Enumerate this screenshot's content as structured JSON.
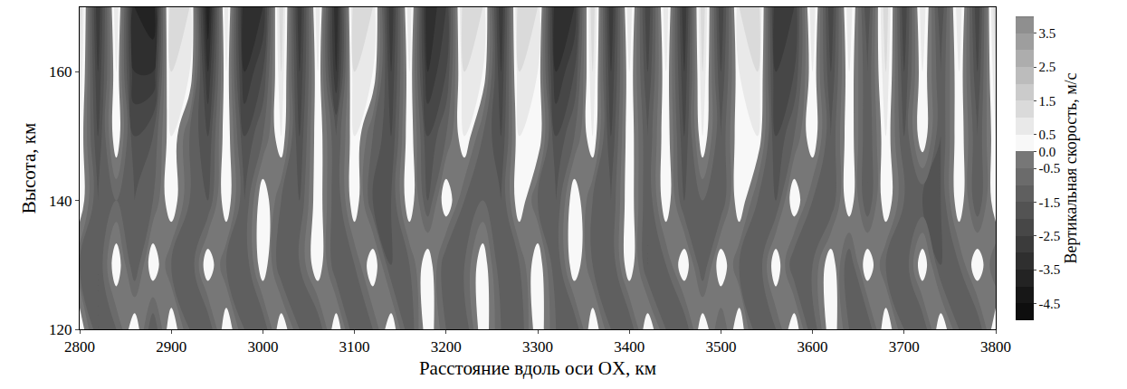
{
  "chart_data": {
    "type": "contour",
    "x_label": "Расстояние вдоль оси OX, км",
    "y_label": "Высота, км",
    "x": [
      2800,
      2820,
      2840,
      2860,
      2880,
      2900,
      2920,
      2940,
      2960,
      2980,
      3000,
      3020,
      3040,
      3060,
      3080,
      3100,
      3120,
      3140,
      3160,
      3180,
      3200,
      3220,
      3240,
      3260,
      3280,
      3300,
      3320,
      3340,
      3360,
      3380,
      3400,
      3420,
      3440,
      3460,
      3480,
      3500,
      3520,
      3540,
      3560,
      3580,
      3600,
      3620,
      3640,
      3660,
      3680,
      3700,
      3720,
      3740,
      3760,
      3780,
      3800
    ],
    "y": [
      120,
      130,
      140,
      150,
      160,
      170
    ],
    "z": [
      [
        0.5,
        -1.5,
        -1.0,
        0.5,
        -1.5,
        0.5,
        -1.0,
        -1.5,
        0.5,
        -1.0,
        -1.5,
        0.5,
        -1.0,
        -1.5,
        0.5,
        -1.5,
        -1.0,
        0.5,
        -1.5,
        0.5,
        -1.0,
        -1.5,
        0.5,
        -1.0,
        -1.5,
        0.5,
        -1.0,
        -1.5,
        0.5,
        -1.0,
        -1.5,
        0.5,
        -1.0,
        -1.5,
        0.5,
        -1.0,
        0.5,
        -1.5,
        -1.0,
        0.5,
        -1.5,
        0.5,
        -1.0,
        -1.5,
        0.5,
        -1.0,
        -1.5,
        0.5,
        -1.0,
        -1.5,
        0.5
      ],
      [
        -1.0,
        -1.5,
        0.5,
        -1.5,
        0.5,
        -1.0,
        -1.5,
        0.5,
        -1.0,
        -1.5,
        0.5,
        -1.5,
        -1.0,
        0.5,
        -1.5,
        -1.0,
        0.5,
        -1.5,
        -1.0,
        0.5,
        -1.5,
        -1.0,
        0.5,
        -1.5,
        -1.0,
        0.5,
        -1.5,
        0.5,
        -1.0,
        -1.5,
        0.5,
        -1.5,
        -1.0,
        0.5,
        -1.5,
        0.5,
        -1.0,
        -1.5,
        0.5,
        -1.5,
        -1.0,
        0.5,
        -1.5,
        0.5,
        -1.0,
        -1.5,
        0.5,
        -1.5,
        -1.0,
        0.5,
        -1.0
      ],
      [
        0.5,
        -1.5,
        -1.0,
        -1.5,
        -1.0,
        0.5,
        -1.0,
        -1.5,
        0.5,
        -1.5,
        0.5,
        -1.0,
        -1.5,
        0.5,
        -1.5,
        0.5,
        -1.5,
        -1.5,
        0.5,
        -1.5,
        0.5,
        -1.0,
        -1.0,
        -1.5,
        0.5,
        -1.0,
        -1.5,
        0.5,
        -1.0,
        -1.5,
        0.5,
        -1.5,
        0.5,
        -1.5,
        -1.0,
        -1.5,
        0.5,
        -1.0,
        -1.5,
        0.5,
        -1.0,
        -1.5,
        0.5,
        -1.5,
        0.5,
        -1.0,
        -1.5,
        -1.5,
        0.5,
        -1.5,
        0.5
      ],
      [
        0.5,
        -2.0,
        0.5,
        -2.0,
        -1.5,
        0.5,
        -1.0,
        -2.0,
        0.5,
        -2.0,
        -1.0,
        0.5,
        -2.0,
        0.5,
        -1.5,
        0.5,
        -1.0,
        -2.0,
        0.5,
        -2.0,
        -1.0,
        0.5,
        -1.0,
        -2.0,
        0.5,
        0.5,
        -2.0,
        -1.0,
        0.5,
        -2.0,
        0.5,
        -1.5,
        0.5,
        -2.0,
        0.5,
        -1.5,
        0.5,
        0.5,
        -2.0,
        -1.0,
        0.5,
        -1.5,
        0.5,
        -1.5,
        0.5,
        -1.5,
        0.5,
        -1.5,
        0.5,
        -1.5,
        0.5
      ],
      [
        1.0,
        -2.5,
        0.5,
        -3.0,
        -3.0,
        1.0,
        0.5,
        -3.0,
        0.5,
        -3.0,
        -2.0,
        1.0,
        -2.5,
        0.5,
        -3.0,
        1.0,
        0.5,
        -2.5,
        0.5,
        -3.0,
        -2.0,
        1.0,
        0.5,
        -2.5,
        1.0,
        0.5,
        -3.0,
        -2.0,
        1.0,
        -2.5,
        0.5,
        -2.0,
        0.5,
        -2.5,
        1.0,
        -2.0,
        0.5,
        1.0,
        -2.5,
        -2.0,
        0.5,
        -2.0,
        0.5,
        -1.5,
        1.0,
        -2.0,
        0.5,
        -1.5,
        0.5,
        -2.0,
        1.0
      ],
      [
        1.5,
        -3.0,
        1.0,
        -3.5,
        -4.0,
        1.5,
        1.0,
        -4.0,
        1.0,
        -3.5,
        -3.0,
        1.5,
        -3.0,
        1.0,
        -3.5,
        1.5,
        1.0,
        -3.0,
        1.0,
        -3.5,
        -2.5,
        1.5,
        1.0,
        -3.0,
        1.5,
        1.0,
        -3.5,
        -3.0,
        1.5,
        -3.0,
        1.0,
        -2.5,
        1.0,
        -3.0,
        1.5,
        -2.5,
        1.0,
        1.5,
        -3.0,
        -2.5,
        1.0,
        -2.5,
        1.0,
        -2.0,
        1.5,
        -2.5,
        1.0,
        -2.0,
        1.0,
        -2.5,
        1.5
      ]
    ],
    "xlim": [
      2800,
      3800
    ],
    "ylim": [
      120,
      170
    ],
    "xticks": [
      2800,
      2900,
      3000,
      3100,
      3200,
      3300,
      3400,
      3500,
      3600,
      3700,
      3800
    ],
    "yticks": [
      120,
      140,
      160
    ],
    "colorbar": {
      "title": "Вертикальная скорость, м/с",
      "range": [
        -5,
        4
      ],
      "ticks": [
        3.5,
        2.5,
        1.5,
        0.5,
        {
          "value": 0,
          "label": "0.0"
        },
        -0.5,
        -1.5,
        -2.5,
        -3.5,
        -4.5
      ]
    }
  }
}
